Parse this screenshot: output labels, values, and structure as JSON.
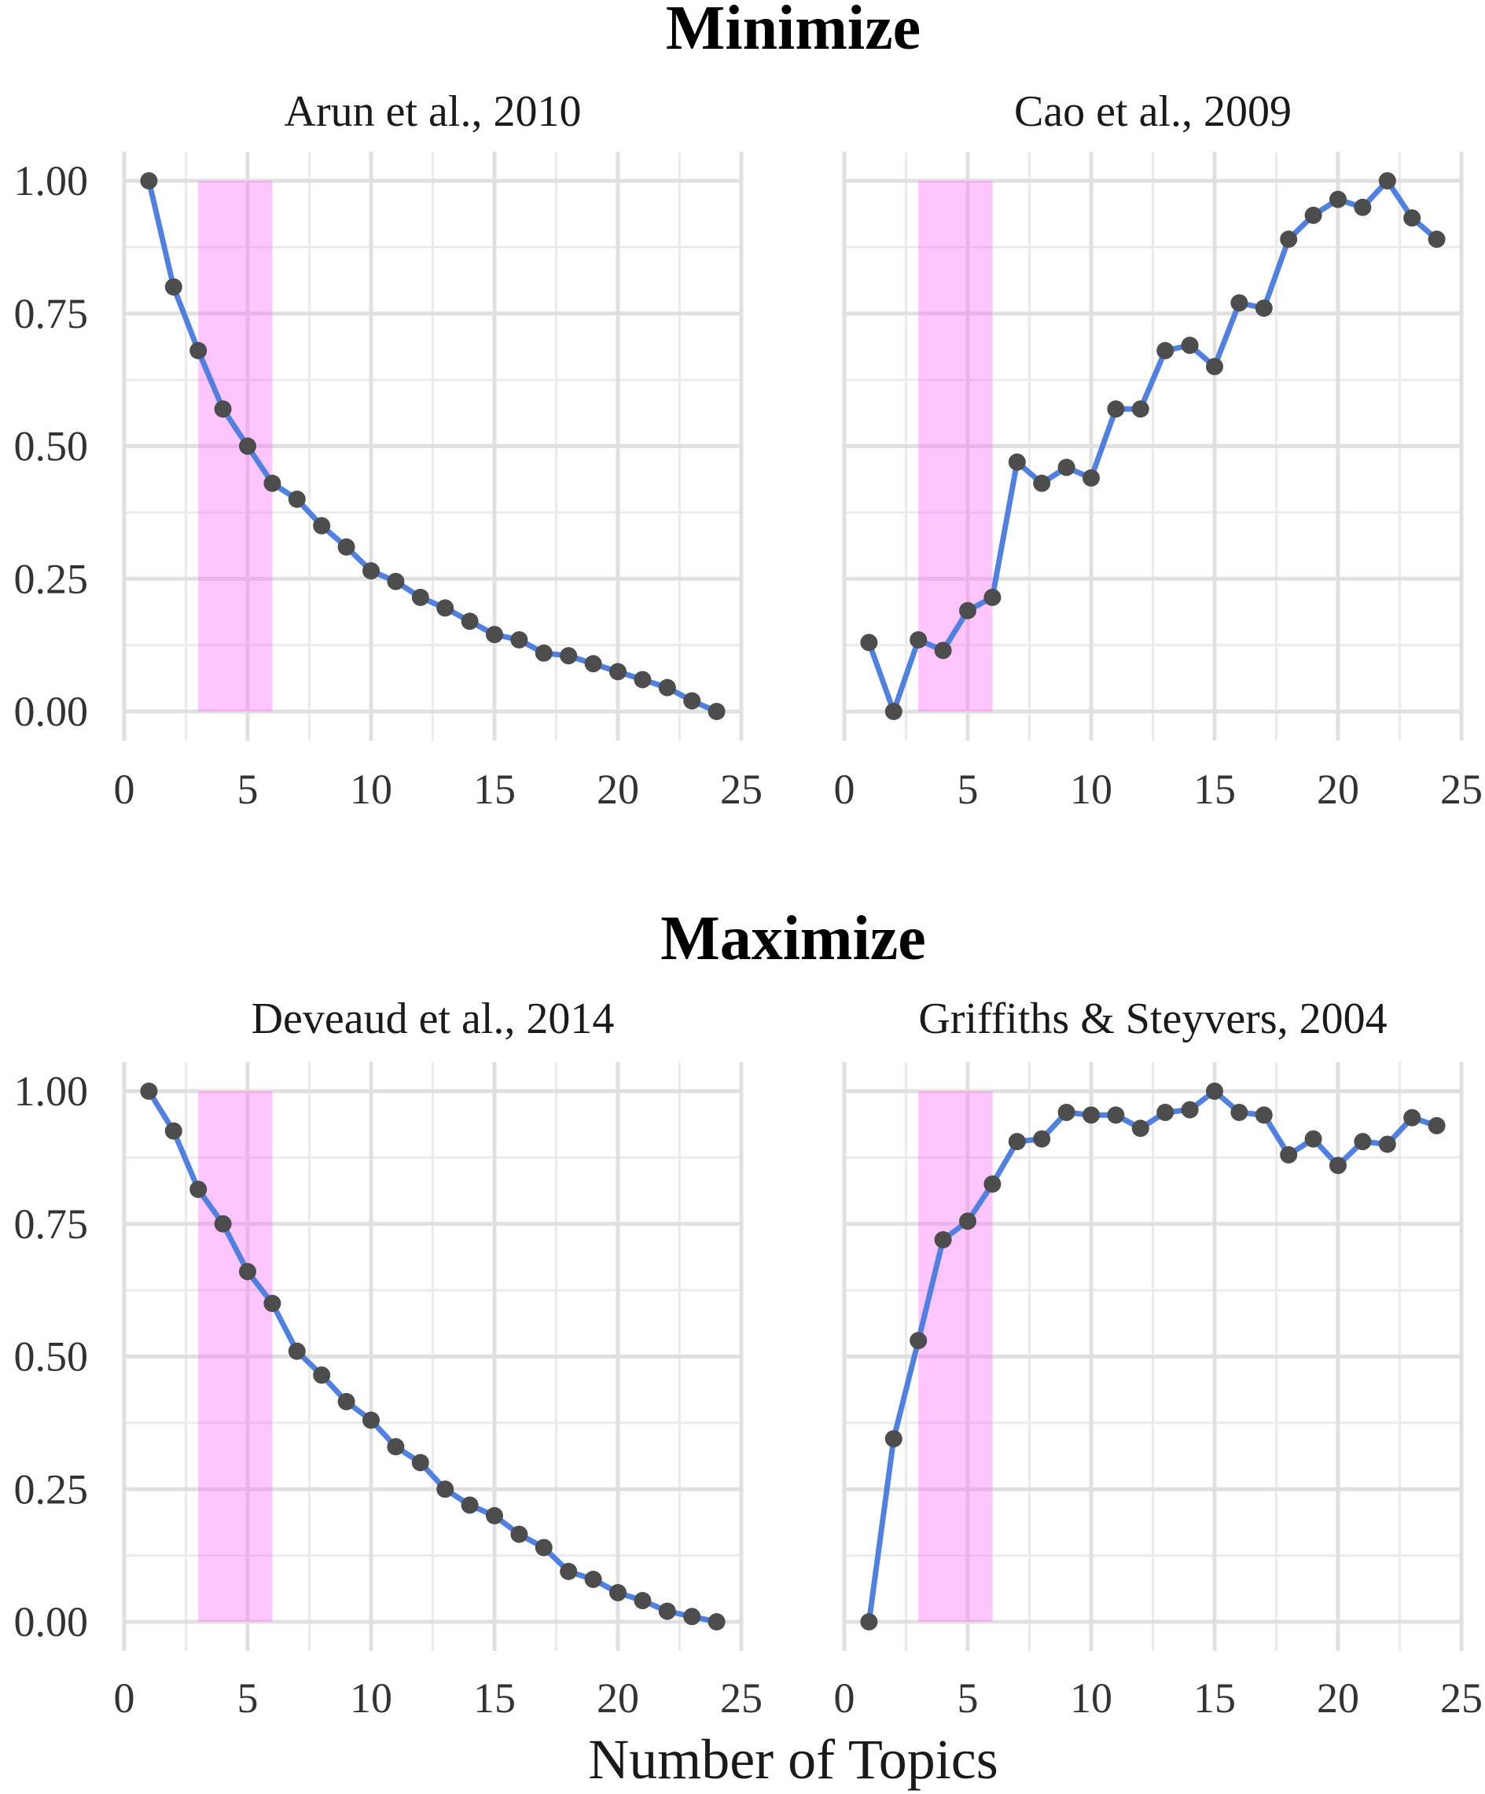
{
  "figure": {
    "section_titles": [
      "Minimize",
      "Maximize"
    ],
    "xlabel": "Number of Topics"
  },
  "chart_data": [
    {
      "type": "line",
      "section": "Minimize",
      "title": "Arun et al., 2010",
      "x": [
        1,
        2,
        3,
        4,
        5,
        6,
        7,
        8,
        9,
        10,
        11,
        12,
        13,
        14,
        15,
        16,
        17,
        18,
        19,
        20,
        21,
        22,
        23,
        24
      ],
      "series": [
        {
          "values": [
            1.0,
            0.8,
            0.68,
            0.57,
            0.5,
            0.43,
            0.4,
            0.35,
            0.31,
            0.265,
            0.245,
            0.215,
            0.195,
            0.17,
            0.145,
            0.135,
            0.11,
            0.105,
            0.09,
            0.075,
            0.06,
            0.045,
            0.02,
            0.0
          ]
        }
      ],
      "highlight_x_range": [
        3,
        6
      ],
      "xlim": [
        0,
        25
      ],
      "ylim": [
        0,
        1
      ],
      "xticks": [
        0,
        5,
        10,
        15,
        20,
        25
      ],
      "yticks": [
        0.0,
        0.25,
        0.5,
        0.75,
        1.0
      ],
      "ytick_labels": [
        "0.00",
        "0.25",
        "0.50",
        "0.75",
        "1.00"
      ],
      "show_y_tick_labels": true,
      "grid": true
    },
    {
      "type": "line",
      "section": "Minimize",
      "title": "Cao et al., 2009",
      "x": [
        1,
        2,
        3,
        4,
        5,
        6,
        7,
        8,
        9,
        10,
        11,
        12,
        13,
        14,
        15,
        16,
        17,
        18,
        19,
        20,
        21,
        22,
        23,
        24
      ],
      "series": [
        {
          "values": [
            0.13,
            0.0,
            0.135,
            0.115,
            0.19,
            0.215,
            0.47,
            0.43,
            0.46,
            0.44,
            0.57,
            0.57,
            0.68,
            0.69,
            0.65,
            0.77,
            0.76,
            0.89,
            0.935,
            0.965,
            0.95,
            1.0,
            0.93,
            0.89
          ]
        }
      ],
      "highlight_x_range": [
        3,
        6
      ],
      "xlim": [
        0,
        25
      ],
      "ylim": [
        0,
        1
      ],
      "xticks": [
        0,
        5,
        10,
        15,
        20,
        25
      ],
      "yticks": [
        0.0,
        0.25,
        0.5,
        0.75,
        1.0
      ],
      "show_y_tick_labels": false,
      "grid": true
    },
    {
      "type": "line",
      "section": "Maximize",
      "title": "Deveaud et al., 2014",
      "x": [
        1,
        2,
        3,
        4,
        5,
        6,
        7,
        8,
        9,
        10,
        11,
        12,
        13,
        14,
        15,
        16,
        17,
        18,
        19,
        20,
        21,
        22,
        23,
        24
      ],
      "series": [
        {
          "values": [
            1.0,
            0.925,
            0.815,
            0.75,
            0.66,
            0.6,
            0.51,
            0.465,
            0.415,
            0.38,
            0.33,
            0.3,
            0.25,
            0.22,
            0.2,
            0.165,
            0.14,
            0.095,
            0.08,
            0.055,
            0.04,
            0.02,
            0.01,
            0.0
          ]
        }
      ],
      "highlight_x_range": [
        3,
        6
      ],
      "xlim": [
        0,
        25
      ],
      "ylim": [
        0,
        1
      ],
      "xticks": [
        0,
        5,
        10,
        15,
        20,
        25
      ],
      "yticks": [
        0.0,
        0.25,
        0.5,
        0.75,
        1.0
      ],
      "ytick_labels": [
        "0.00",
        "0.25",
        "0.50",
        "0.75",
        "1.00"
      ],
      "show_y_tick_labels": true,
      "grid": true
    },
    {
      "type": "line",
      "section": "Maximize",
      "title": "Griffiths & Steyvers, 2004",
      "x": [
        1,
        2,
        3,
        4,
        5,
        6,
        7,
        8,
        9,
        10,
        11,
        12,
        13,
        14,
        15,
        16,
        17,
        18,
        19,
        20,
        21,
        22,
        23,
        24
      ],
      "series": [
        {
          "values": [
            0.0,
            0.345,
            0.53,
            0.72,
            0.755,
            0.825,
            0.905,
            0.91,
            0.96,
            0.955,
            0.955,
            0.93,
            0.96,
            0.965,
            1.0,
            0.96,
            0.955,
            0.88,
            0.91,
            0.86,
            0.905,
            0.9,
            0.95,
            0.935
          ]
        }
      ],
      "highlight_x_range": [
        3,
        6
      ],
      "xlim": [
        0,
        25
      ],
      "ylim": [
        0,
        1
      ],
      "xticks": [
        0,
        5,
        10,
        15,
        20,
        25
      ],
      "yticks": [
        0.0,
        0.25,
        0.5,
        0.75,
        1.0
      ],
      "show_y_tick_labels": false,
      "grid": true
    }
  ],
  "colors": {
    "line": "#5080E0",
    "point": "#4D4D4D",
    "highlight": "#FF66FF",
    "grid_major": "#E0E0E0",
    "grid_minor": "#EBEBEB"
  }
}
